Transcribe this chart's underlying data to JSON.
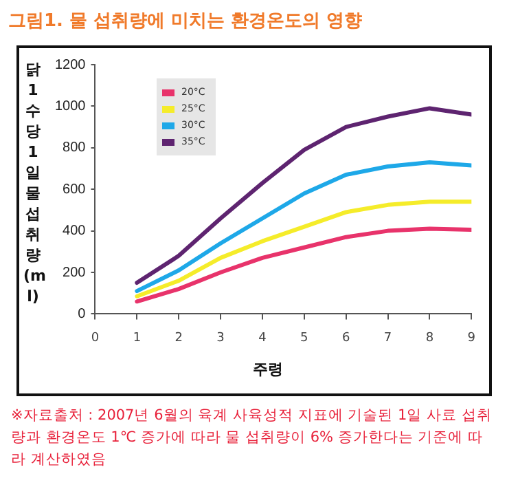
{
  "chart_data": {
    "type": "line",
    "title": "그림1. 물 섭취량에 미치는 환경온도의 영향",
    "xlabel": "주령",
    "ylabel": "닭 1수당 1일 물 섭취량 (ml)",
    "x": [
      1,
      2,
      3,
      4,
      5,
      6,
      7,
      8,
      9
    ],
    "series": [
      {
        "name": "20°C",
        "color": "#e8336b",
        "values": [
          60,
          120,
          200,
          270,
          320,
          370,
          400,
          410,
          405
        ]
      },
      {
        "name": "25°C",
        "color": "#f5ec2a",
        "values": [
          85,
          160,
          270,
          350,
          420,
          490,
          525,
          540,
          540
        ]
      },
      {
        "name": "30°C",
        "color": "#1ea8e8",
        "values": [
          110,
          210,
          340,
          460,
          580,
          670,
          710,
          730,
          715
        ]
      },
      {
        "name": "35°C",
        "color": "#5e2470",
        "values": [
          150,
          280,
          460,
          630,
          790,
          900,
          950,
          990,
          960
        ]
      }
    ],
    "xlim": [
      0,
      9
    ],
    "xticks": [
      0,
      1,
      2,
      3,
      4,
      5,
      6,
      7,
      8,
      9
    ],
    "ylim": [
      0,
      1200
    ],
    "yticks": [
      0,
      200,
      400,
      600,
      800,
      1000,
      1200
    ],
    "grid": false,
    "legend": "top left",
    "marker": "none",
    "line_style": "solid",
    "annotations": [
      "※자료출처 : 2007년 6월의 육계 사육성적 지표에 기술된 1일 사료 섭취량과 환경온도 1℃ 증가에 따라 물 섭취량이 6% 증가한다는 기준에 따라 계산하였음"
    ]
  }
}
